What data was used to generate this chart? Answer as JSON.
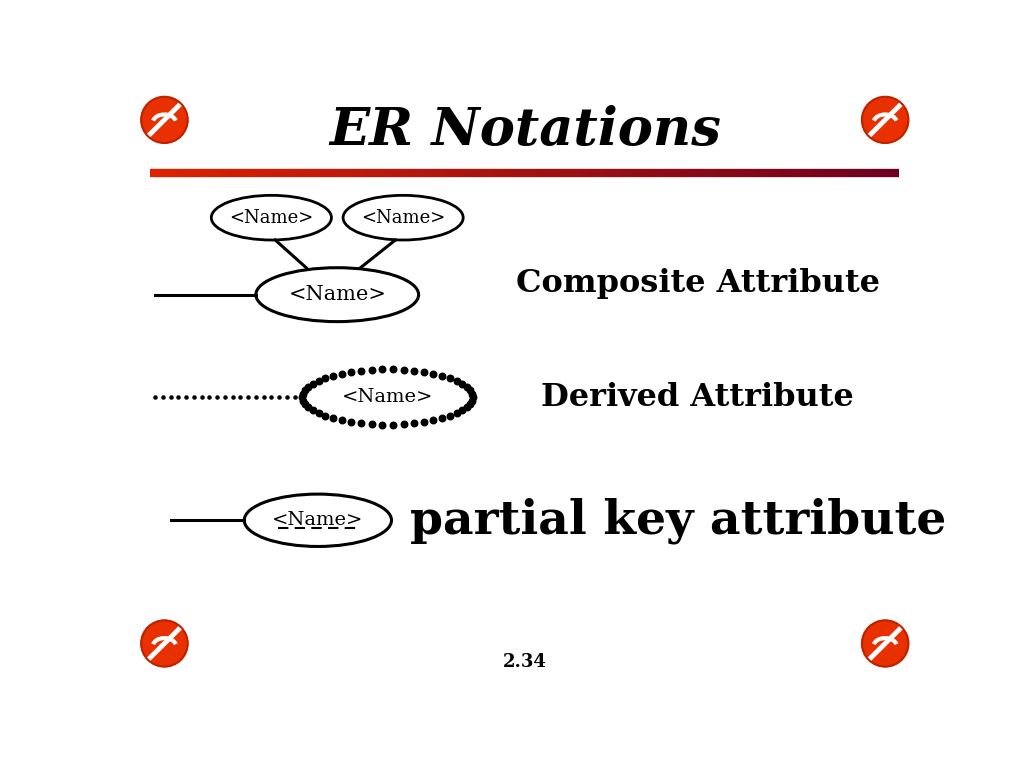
{
  "title": "ER Notations",
  "title_fontsize": 38,
  "title_fontstyle": "italic",
  "title_fontweight": "bold",
  "bg_color": "#ffffff",
  "separator_color_left": "#dd2200",
  "separator_color_right": "#6b0020",
  "label_name": "<Name>",
  "composite_label": "Composite Attribute",
  "derived_label": "Derived Attribute",
  "partial_label": "partial key attribute",
  "composite_label_fontsize": 23,
  "derived_label_fontsize": 23,
  "partial_label_fontsize": 34,
  "page_num": "2.34",
  "logo_color": "#e83000",
  "logo_size": 0.52
}
